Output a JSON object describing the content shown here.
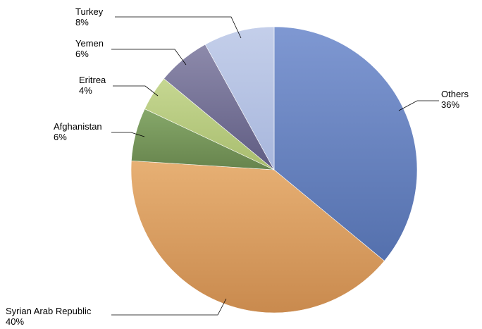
{
  "chart_data": {
    "type": "pie",
    "title": "",
    "legend": "none",
    "slices": [
      {
        "label": "Others",
        "value": 36,
        "percent_label": "36%",
        "color_light": "#7f98d2",
        "color_dark": "#5470ad"
      },
      {
        "label": "Syrian Arab Republic",
        "value": 40,
        "percent_label": "40%",
        "color_light": "#e7b074",
        "color_dark": "#c98a4e"
      },
      {
        "label": "Afghanistan",
        "value": 6,
        "percent_label": "6%",
        "color_light": "#86a86a",
        "color_dark": "#67844d"
      },
      {
        "label": "Eritrea",
        "value": 4,
        "percent_label": "4%",
        "color_light": "#c6d792",
        "color_dark": "#a8bd6e"
      },
      {
        "label": "Yemen",
        "value": 6,
        "percent_label": "6%",
        "color_light": "#8d8aab",
        "color_dark": "#5f5c82"
      },
      {
        "label": "Turkey",
        "value": 8,
        "percent_label": "8%",
        "color_light": "#c4cfea",
        "color_dark": "#a7b6dc"
      }
    ]
  }
}
